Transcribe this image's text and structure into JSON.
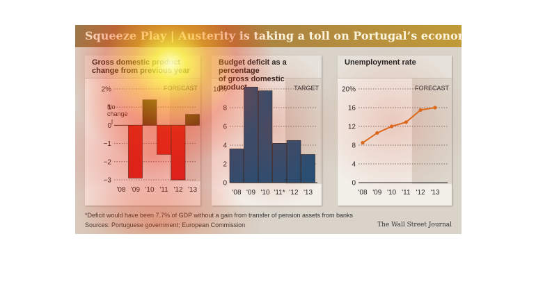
{
  "header": {
    "title": "Squeeze Play | Austerity is taking a toll on Portugal’s economy"
  },
  "footer": {
    "footnote": "*Deficit would have been 7.7% of GDP without a gain from transfer of pension assets from banks",
    "sources": "Sources: Portuguese government; European Commission",
    "credit": "The Wall Street Journal"
  },
  "colors": {
    "banner": "#b08840",
    "negative": "#d8201c",
    "positive": "#1f4f78",
    "line": "#e0701c",
    "projection_shade": "#dcd6cc"
  },
  "chart_data": [
    {
      "type": "bar",
      "title_lines": [
        "Gross domestic product",
        "change from previous year"
      ],
      "categories": [
        "'08",
        "'09",
        "'10",
        "'11",
        "'12",
        "'13"
      ],
      "values": [
        0,
        -2.9,
        1.4,
        -1.6,
        -3.0,
        0.6
      ],
      "yticks": [
        "2%",
        "1",
        "0",
        "−1",
        "−2",
        "−3"
      ],
      "ylim": [
        -3,
        2
      ],
      "projection_label": "FORECAST",
      "projection_from": 4,
      "annotation_lines": [
        "No",
        "change"
      ]
    },
    {
      "type": "bar",
      "title_lines": [
        "Budget deficit as a percentage",
        "of gross domestic product"
      ],
      "categories": [
        "'08",
        "'09",
        "'10",
        "'11*",
        "'12",
        "'13"
      ],
      "values": [
        3.6,
        10.2,
        9.8,
        4.2,
        4.5,
        3.0
      ],
      "yticks": [
        "10%",
        "8",
        "6",
        "4",
        "2",
        "0"
      ],
      "ylim": [
        0,
        10
      ],
      "projection_label": "TARGET",
      "projection_from": 4
    },
    {
      "type": "line",
      "title_lines": [
        "Unemployment rate"
      ],
      "categories": [
        "'08",
        "'09",
        "'10",
        "'11",
        "'12",
        "'13"
      ],
      "values": [
        8.5,
        10.6,
        12.0,
        12.9,
        15.5,
        16.0
      ],
      "yticks": [
        "20%",
        "16",
        "12",
        "8",
        "4",
        "0"
      ],
      "ylim": [
        0,
        20
      ],
      "projection_label": "FORECAST",
      "projection_from": 4
    }
  ]
}
